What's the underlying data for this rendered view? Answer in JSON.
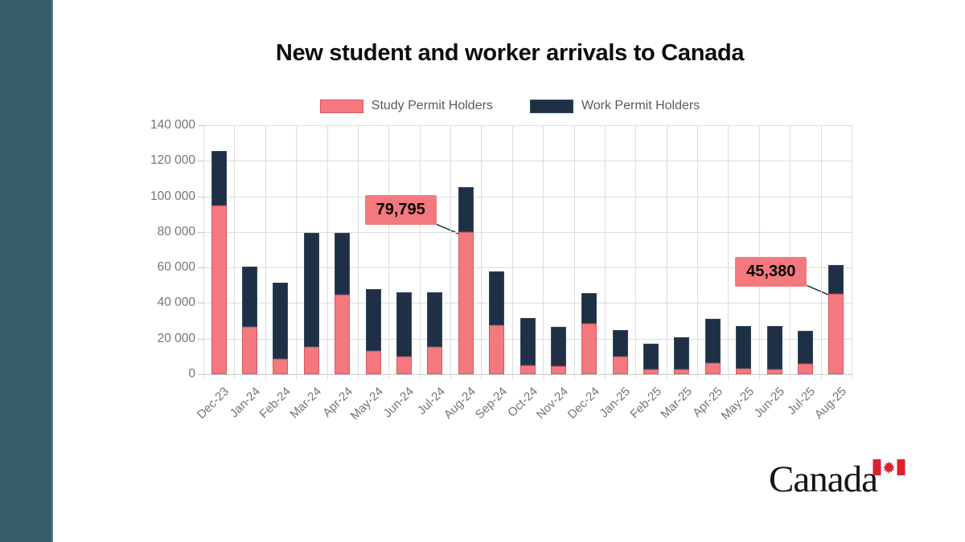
{
  "title": "New student and worker arrivals to Canada",
  "legend": {
    "items": [
      {
        "label": "Study Permit Holders",
        "color": "#f4797f"
      },
      {
        "label": "Work Permit Holders",
        "color": "#1f3044"
      }
    ]
  },
  "colors": {
    "study_fill": "#f4797f",
    "study_border": "#d9565e",
    "work_fill": "#1f3044",
    "work_border": "#33485e",
    "accent_bar": "#355c68",
    "gridline": "#dcdcdc",
    "axis_text": "#757575",
    "callout_bg": "#f4797f",
    "flag_red": "#dc202e"
  },
  "chart_data": {
    "type": "bar",
    "stacked": true,
    "title": "New student and worker arrivals to Canada",
    "categories": [
      "Dec-23",
      "Jan-24",
      "Feb-24",
      "Mar-24",
      "Apr-24",
      "May-24",
      "Jun-24",
      "Jul-24",
      "Aug-24",
      "Sep-24",
      "Oct-24",
      "Nov-24",
      "Dec-24",
      "Jan-25",
      "Feb-25",
      "Mar-25",
      "Apr-25",
      "May-25",
      "Jun-25",
      "Jul-25",
      "Aug-25"
    ],
    "series": [
      {
        "name": "Study Permit Holders",
        "color": "#f4797f",
        "values": [
          95000,
          26500,
          8500,
          15500,
          44500,
          13000,
          10000,
          15500,
          79795,
          27500,
          5000,
          4500,
          28500,
          10000,
          2500,
          2500,
          6500,
          3000,
          2500,
          6000,
          45380
        ]
      },
      {
        "name": "Work Permit Holders",
        "color": "#1f3044",
        "values": [
          30500,
          34000,
          43000,
          64000,
          35000,
          35000,
          36000,
          30500,
          25500,
          30500,
          26500,
          22000,
          17000,
          15000,
          14500,
          18500,
          24500,
          24000,
          24500,
          18500,
          16000
        ]
      }
    ],
    "ylim": [
      0,
      140000
    ],
    "ytick_step": 20000,
    "ytick_labels": [
      "0",
      "20 000",
      "40 000",
      "60 000",
      "80 000",
      "100 000",
      "120 000",
      "140 000"
    ],
    "grid": true,
    "legend_position": "top",
    "xlabel": "",
    "ylabel": "",
    "annotations": [
      {
        "text": "79,795",
        "category": "Aug-24",
        "series": "Study Permit Holders",
        "value": 79795
      },
      {
        "text": "45,380",
        "category": "Aug-25",
        "series": "Study Permit Holders",
        "value": 45380
      }
    ]
  },
  "logo": {
    "text": "Canada"
  }
}
